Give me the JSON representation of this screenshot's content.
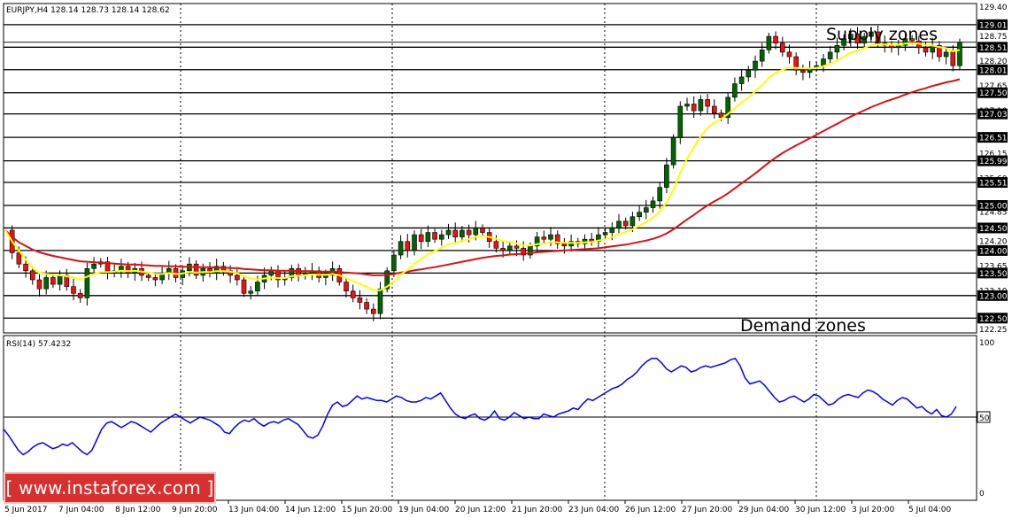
{
  "chart_data": [
    {
      "type": "candlestick",
      "title": "EURJPY,H4  128.14 128.73 128.14 128.62",
      "price_ticks": [
        "129.40",
        "128.75",
        "128.20",
        "127.65",
        "127.10",
        "126.15",
        "125.60",
        "124.85",
        "124.20",
        "123.65",
        "123.10",
        "122.50",
        "122.25",
        "122.80",
        "123.95"
      ],
      "levels": [
        {
          "value": 129.01,
          "label": "129.01"
        },
        {
          "value": 128.51,
          "label": "128.51"
        },
        {
          "value": 128.01,
          "label": "128.01"
        },
        {
          "value": 127.5,
          "label": "127.50"
        },
        {
          "value": 127.03,
          "label": "127.03"
        },
        {
          "value": 126.51,
          "label": "126.51"
        },
        {
          "value": 125.99,
          "label": "125.99"
        },
        {
          "value": 125.51,
          "label": "125.51"
        },
        {
          "value": 125.0,
          "label": "125.00"
        },
        {
          "value": 124.5,
          "label": "124.50"
        },
        {
          "value": 124.0,
          "label": "124.00"
        },
        {
          "value": 123.5,
          "label": "123.50"
        },
        {
          "value": 123.0,
          "label": "123.00"
        },
        {
          "value": 122.5,
          "label": "122.50"
        }
      ],
      "ylim": [
        122.25,
        129.4
      ],
      "annotations": [
        {
          "text": "Supply zones",
          "value": 128.8
        },
        {
          "text": "Demand zones",
          "value": 122.4
        }
      ],
      "x_labels": [
        "5 Jun 2017",
        "7 Jun 04:00",
        "8 Jun 12:00",
        "9 Jun 20:00",
        "13 Jun 04:00",
        "14 Jun 12:00",
        "15 Jun 20:00",
        "19 Jun 04:00",
        "20 Jun 12:00",
        "21 Jun 20:00",
        "23 Jun 04:00",
        "26 Jun 12:00",
        "27 Jun 20:00",
        "29 Jun 04:00",
        "30 Jun 12:00",
        "3 Jul 20:00",
        "5 Jul 04:00"
      ],
      "close_path": [
        124.45,
        123.95,
        123.7,
        123.55,
        123.35,
        123.15,
        123.4,
        123.25,
        123.45,
        123.2,
        123.05,
        122.95,
        123.6,
        123.7,
        123.75,
        123.5,
        123.55,
        123.65,
        123.5,
        123.6,
        123.45,
        123.4,
        123.35,
        123.5,
        123.6,
        123.4,
        123.55,
        123.7,
        123.45,
        123.6,
        123.5,
        123.65,
        123.55,
        123.45,
        123.35,
        123.05,
        123.1,
        123.3,
        123.45,
        123.55,
        123.35,
        123.4,
        123.6,
        123.45,
        123.5,
        123.55,
        123.4,
        123.45,
        123.6,
        123.3,
        123.1,
        122.95,
        122.85,
        122.7,
        122.6,
        123.15,
        123.55,
        123.9,
        124.2,
        124.0,
        124.35,
        124.2,
        124.4,
        124.25,
        124.35,
        124.45,
        124.3,
        124.45,
        124.35,
        124.5,
        124.4,
        124.2,
        124.05,
        124.0,
        124.1,
        124.05,
        123.9,
        124.1,
        124.3,
        124.25,
        124.35,
        124.15,
        124.1,
        124.2,
        124.15,
        124.25,
        124.2,
        124.35,
        124.4,
        124.5,
        124.65,
        124.55,
        124.75,
        124.85,
        124.95,
        125.1,
        125.4,
        125.9,
        126.5,
        127.2,
        127.25,
        127.1,
        127.35,
        127.2,
        127.05,
        126.95,
        127.4,
        127.7,
        127.85,
        128.0,
        128.2,
        128.45,
        128.75,
        128.6,
        128.4,
        128.3,
        128.0,
        127.95,
        128.05,
        128.1,
        128.25,
        128.4,
        128.55,
        128.7,
        128.8,
        128.6,
        128.75,
        128.85,
        128.6,
        128.55,
        128.5,
        128.55,
        128.7,
        128.65,
        128.5,
        128.4,
        128.55,
        128.3,
        128.4,
        128.1,
        128.62
      ],
      "series": [
        {
          "name": "MA fast",
          "color": "#ffff00",
          "values": [
            124.45,
            124.2,
            124.0,
            123.8,
            123.62,
            123.5,
            123.48,
            123.46,
            123.45,
            123.43,
            123.4,
            123.36,
            123.42,
            123.48,
            123.52,
            123.52,
            123.53,
            123.55,
            123.54,
            123.55,
            123.53,
            123.51,
            123.48,
            123.48,
            123.5,
            123.48,
            123.49,
            123.52,
            123.51,
            123.52,
            123.52,
            123.54,
            123.54,
            123.53,
            123.5,
            123.43,
            123.38,
            123.36,
            123.38,
            123.4,
            123.39,
            123.39,
            123.43,
            123.44,
            123.45,
            123.47,
            123.46,
            123.46,
            123.48,
            123.45,
            123.39,
            123.32,
            123.26,
            123.19,
            123.12,
            123.12,
            123.2,
            123.32,
            123.47,
            123.57,
            123.71,
            123.81,
            123.92,
            123.99,
            124.06,
            124.14,
            124.17,
            124.22,
            124.25,
            124.3,
            124.32,
            124.3,
            124.26,
            124.21,
            124.19,
            124.16,
            124.11,
            124.11,
            124.14,
            124.15,
            124.19,
            124.18,
            124.17,
            124.17,
            124.17,
            124.18,
            124.19,
            124.22,
            124.25,
            124.3,
            124.37,
            124.41,
            124.47,
            124.55,
            124.63,
            124.73,
            124.87,
            125.07,
            125.35,
            125.72,
            126.04,
            126.29,
            126.53,
            126.72,
            126.84,
            126.92,
            127.03,
            127.16,
            127.28,
            127.4,
            127.53,
            127.67,
            127.83,
            127.94,
            128.01,
            128.06,
            128.05,
            128.04,
            128.04,
            128.05,
            128.09,
            128.14,
            128.21,
            128.3,
            128.39,
            128.43,
            128.49,
            128.56,
            128.57,
            128.57,
            128.56,
            128.56,
            128.59,
            128.6,
            128.59,
            128.55,
            128.55,
            128.51,
            128.49,
            128.42,
            128.45
          ]
        },
        {
          "name": "MA slow",
          "color": "#dd1010",
          "values": [
            124.45,
            124.3,
            124.18,
            124.1,
            124.02,
            123.96,
            123.92,
            123.88,
            123.85,
            123.82,
            123.79,
            123.76,
            123.75,
            123.74,
            123.73,
            123.72,
            123.71,
            123.7,
            123.69,
            123.69,
            123.68,
            123.67,
            123.66,
            123.66,
            123.65,
            123.65,
            123.64,
            123.64,
            123.63,
            123.63,
            123.63,
            123.62,
            123.62,
            123.61,
            123.61,
            123.59,
            123.58,
            123.57,
            123.56,
            123.56,
            123.55,
            123.55,
            123.55,
            123.54,
            123.54,
            123.54,
            123.53,
            123.53,
            123.53,
            123.52,
            123.51,
            123.5,
            123.49,
            123.47,
            123.45,
            123.45,
            123.46,
            123.48,
            123.51,
            123.53,
            123.56,
            123.58,
            123.61,
            123.63,
            123.66,
            123.69,
            123.72,
            123.75,
            123.78,
            123.81,
            123.84,
            123.86,
            123.88,
            123.89,
            123.91,
            123.92,
            123.93,
            123.94,
            123.96,
            123.97,
            123.98,
            123.99,
            124.0,
            124.01,
            124.02,
            124.03,
            124.04,
            124.05,
            124.07,
            124.09,
            124.11,
            124.13,
            124.16,
            124.19,
            124.22,
            124.26,
            124.31,
            124.38,
            124.47,
            124.58,
            124.69,
            124.79,
            124.9,
            125.0,
            125.09,
            125.17,
            125.27,
            125.38,
            125.49,
            125.6,
            125.71,
            125.83,
            125.95,
            126.06,
            126.16,
            126.25,
            126.33,
            126.41,
            126.49,
            126.57,
            126.65,
            126.73,
            126.81,
            126.89,
            126.97,
            127.04,
            127.11,
            127.18,
            127.24,
            127.3,
            127.35,
            127.4,
            127.46,
            127.51,
            127.56,
            127.6,
            127.65,
            127.69,
            127.73,
            127.76,
            127.8
          ]
        }
      ]
    },
    {
      "type": "line",
      "title": "RSI(14) 57.4232",
      "ylim": [
        0,
        100
      ],
      "y_ticks": [
        "100",
        "50",
        "0"
      ],
      "levels": [
        {
          "value": 50,
          "label": "50"
        }
      ],
      "series": [
        {
          "name": "RSI(14)",
          "color": "#0000ff",
          "values": [
            42,
            38,
            33,
            28,
            25,
            27,
            30,
            32,
            33,
            31,
            29,
            30,
            32,
            31,
            33,
            30,
            27,
            25,
            28,
            35,
            42,
            46,
            47,
            45,
            43,
            45,
            47,
            46,
            44,
            42,
            40,
            43,
            46,
            48,
            50,
            52,
            50,
            48,
            46,
            48,
            50,
            49,
            48,
            46,
            44,
            40,
            39,
            43,
            46,
            48,
            47,
            49,
            46,
            44,
            46,
            47,
            46,
            48,
            49,
            47,
            45,
            41,
            37,
            36,
            38,
            44,
            52,
            58,
            60,
            57,
            58,
            61,
            64,
            62,
            63,
            62,
            61,
            61,
            60,
            62,
            64,
            63,
            61,
            60,
            60,
            61,
            63,
            62,
            64,
            66,
            61,
            56,
            52,
            50,
            49,
            51,
            52,
            49,
            48,
            50,
            54,
            49,
            48,
            50,
            53,
            51,
            49,
            50,
            49,
            49,
            52,
            51,
            50,
            52,
            53,
            54,
            56,
            55,
            59,
            62,
            61,
            63,
            65,
            67,
            69,
            70,
            72,
            75,
            77,
            80,
            84,
            87,
            89,
            89,
            86,
            82,
            80,
            82,
            84,
            83,
            80,
            81,
            83,
            84,
            83,
            84,
            85,
            86,
            88,
            89,
            84,
            76,
            72,
            73,
            74,
            71,
            67,
            63,
            60,
            61,
            63,
            64,
            62,
            60,
            62,
            65,
            64,
            61,
            58,
            59,
            62,
            64,
            65,
            64,
            63,
            66,
            68,
            67,
            65,
            62,
            60,
            58,
            61,
            63,
            62,
            59,
            56,
            57,
            54,
            52,
            55,
            51,
            50,
            52,
            57
          ]
        }
      ]
    }
  ],
  "watermark": {
    "text": "[ www.instaforex.com ]"
  }
}
